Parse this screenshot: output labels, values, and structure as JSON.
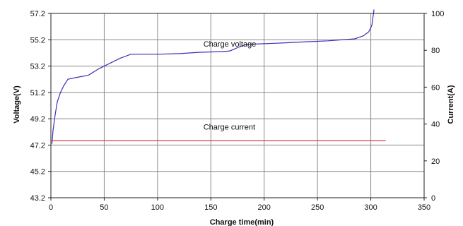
{
  "chart_data": {
    "type": "line",
    "title": "",
    "xlabel": "Charge time(min)",
    "ylabel": "Voltage(V)",
    "y2label": "Current(A)",
    "xlim": [
      0,
      350
    ],
    "ylim": [
      43.2,
      57.2
    ],
    "y2lim": [
      0,
      100
    ],
    "x_ticks": [
      0,
      50,
      100,
      150,
      200,
      250,
      300,
      350
    ],
    "y_ticks": [
      43.2,
      45.2,
      47.2,
      49.2,
      51.2,
      53.2,
      55.2,
      57.2
    ],
    "y_tick_labels": [
      "43.2",
      "45.2",
      "47.2",
      "49.2",
      "51.2",
      "53.2",
      "55.2",
      "57.2"
    ],
    "y2_ticks": [
      0,
      20,
      40,
      60,
      80,
      100
    ],
    "grid": true,
    "legend": "none",
    "annotations": [
      {
        "text": "Charge voltage",
        "x": 143,
        "y": 54.9
      },
      {
        "text": "Charge current",
        "x": 143,
        "y": 48.6
      }
    ],
    "series": [
      {
        "name": "",
        "axis": "left",
        "color": "#3a2fb8",
        "x": [
          1,
          2,
          4,
          6,
          9,
          12,
          16,
          25,
          35,
          45,
          55,
          65,
          75,
          90,
          100,
          120,
          140,
          160,
          168,
          175,
          183,
          200,
          220,
          240,
          260,
          285,
          293,
          298,
          301,
          302,
          303
        ],
        "y": [
          47.3,
          48.3,
          49.5,
          50.5,
          51.2,
          51.7,
          52.2,
          52.35,
          52.5,
          53.0,
          53.4,
          53.8,
          54.1,
          54.1,
          54.1,
          54.15,
          54.25,
          54.3,
          54.35,
          54.6,
          54.85,
          54.9,
          54.97,
          55.05,
          55.12,
          55.27,
          55.5,
          55.8,
          56.3,
          56.9,
          57.5
        ]
      },
      {
        "name": "",
        "axis": "right",
        "color": "#e03a3a",
        "x": [
          0,
          314
        ],
        "y": [
          31,
          31
        ]
      }
    ]
  }
}
